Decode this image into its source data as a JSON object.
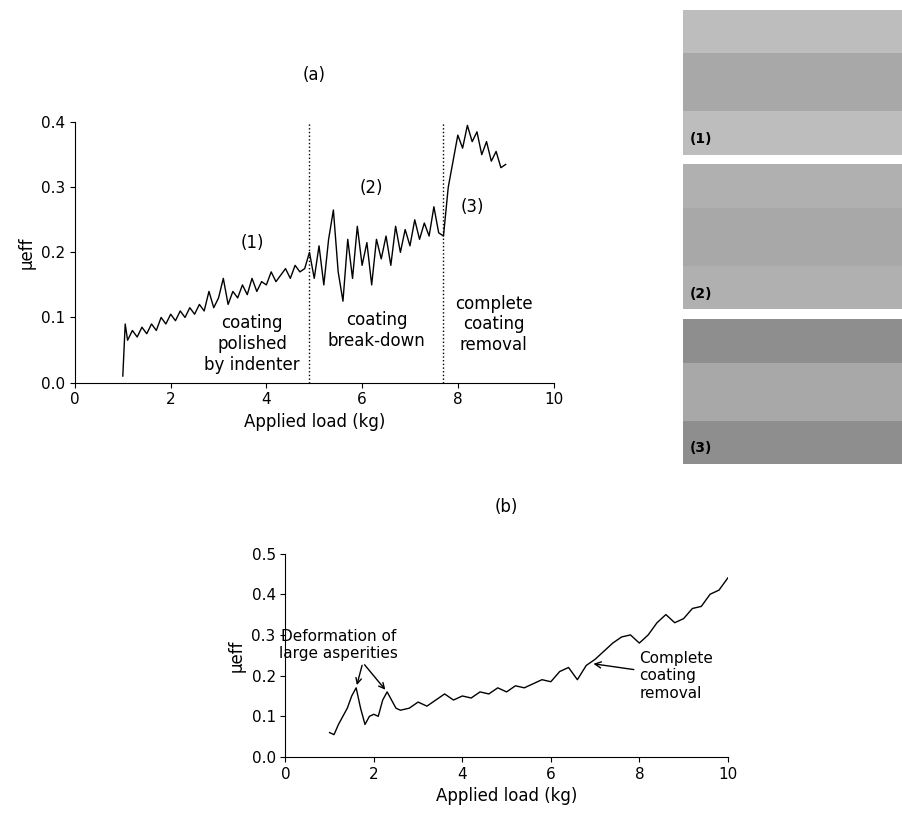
{
  "chart_data": [
    {
      "type": "line",
      "title": "(a)",
      "x_label": "Applied load (kg)",
      "y_label": "μeff",
      "color": "#000000",
      "x": [
        1.0,
        1.05,
        1.1,
        1.2,
        1.3,
        1.4,
        1.5,
        1.6,
        1.7,
        1.8,
        1.9,
        2.0,
        2.1,
        2.2,
        2.3,
        2.4,
        2.5,
        2.6,
        2.7,
        2.8,
        2.9,
        3.0,
        3.1,
        3.2,
        3.3,
        3.4,
        3.5,
        3.6,
        3.7,
        3.8,
        3.9,
        4.0,
        4.1,
        4.2,
        4.3,
        4.4,
        4.5,
        4.6,
        4.7,
        4.8,
        4.9,
        5.0,
        5.1,
        5.2,
        5.3,
        5.4,
        5.5,
        5.6,
        5.7,
        5.8,
        5.9,
        6.0,
        6.1,
        6.2,
        6.3,
        6.4,
        6.5,
        6.6,
        6.7,
        6.8,
        6.9,
        7.0,
        7.1,
        7.2,
        7.3,
        7.4,
        7.5,
        7.6,
        7.7,
        7.8,
        7.9,
        8.0,
        8.1,
        8.2,
        8.3,
        8.4,
        8.5,
        8.6,
        8.7,
        8.8,
        8.9,
        9.0
      ],
      "values": [
        0.01,
        0.09,
        0.065,
        0.08,
        0.07,
        0.085,
        0.075,
        0.09,
        0.08,
        0.1,
        0.09,
        0.105,
        0.095,
        0.11,
        0.1,
        0.115,
        0.105,
        0.12,
        0.11,
        0.14,
        0.115,
        0.13,
        0.16,
        0.12,
        0.14,
        0.13,
        0.15,
        0.135,
        0.16,
        0.14,
        0.155,
        0.15,
        0.17,
        0.155,
        0.165,
        0.175,
        0.16,
        0.18,
        0.17,
        0.175,
        0.2,
        0.16,
        0.21,
        0.15,
        0.22,
        0.265,
        0.17,
        0.125,
        0.22,
        0.16,
        0.24,
        0.18,
        0.215,
        0.15,
        0.22,
        0.19,
        0.225,
        0.18,
        0.24,
        0.2,
        0.235,
        0.21,
        0.25,
        0.22,
        0.245,
        0.225,
        0.27,
        0.23,
        0.225,
        0.3,
        0.34,
        0.38,
        0.36,
        0.395,
        0.37,
        0.385,
        0.35,
        0.37,
        0.34,
        0.355,
        0.33,
        0.335
      ],
      "xlim": [
        0,
        10
      ],
      "xticks": [
        0,
        2,
        4,
        6,
        8,
        10
      ],
      "ylim": [
        0.0,
        0.4
      ],
      "yticks": [
        0.0,
        0.1,
        0.2,
        0.3,
        0.4
      ],
      "dividers": [
        4.9,
        7.7
      ],
      "annotations": [
        {
          "text": "(1)"
        },
        {
          "text": "(2)"
        },
        {
          "text": "(3)"
        },
        {
          "text": "coating\npolished\nby indenter"
        },
        {
          "text": "coating\nbreak-down"
        },
        {
          "text": "complete\ncoating\nremoval"
        }
      ]
    },
    {
      "type": "line",
      "title": "(b)",
      "x_label": "Applied load (kg)",
      "y_label": "μeff",
      "color": "#000000",
      "x": [
        1.0,
        1.1,
        1.2,
        1.3,
        1.4,
        1.5,
        1.6,
        1.7,
        1.8,
        1.9,
        2.0,
        2.1,
        2.2,
        2.3,
        2.4,
        2.5,
        2.6,
        2.8,
        3.0,
        3.2,
        3.4,
        3.6,
        3.8,
        4.0,
        4.2,
        4.4,
        4.6,
        4.8,
        5.0,
        5.2,
        5.4,
        5.6,
        5.8,
        6.0,
        6.2,
        6.4,
        6.6,
        6.8,
        7.0,
        7.2,
        7.4,
        7.6,
        7.8,
        8.0,
        8.2,
        8.4,
        8.6,
        8.8,
        9.0,
        9.2,
        9.4,
        9.6,
        9.8,
        10.0
      ],
      "values": [
        0.06,
        0.055,
        0.08,
        0.1,
        0.12,
        0.15,
        0.17,
        0.12,
        0.08,
        0.1,
        0.105,
        0.1,
        0.14,
        0.16,
        0.14,
        0.12,
        0.115,
        0.12,
        0.135,
        0.125,
        0.14,
        0.155,
        0.14,
        0.15,
        0.145,
        0.16,
        0.155,
        0.17,
        0.16,
        0.175,
        0.17,
        0.18,
        0.19,
        0.185,
        0.21,
        0.22,
        0.19,
        0.225,
        0.24,
        0.26,
        0.28,
        0.295,
        0.3,
        0.28,
        0.3,
        0.33,
        0.35,
        0.33,
        0.34,
        0.365,
        0.37,
        0.4,
        0.41,
        0.44
      ],
      "xlim": [
        0,
        10
      ],
      "xticks": [
        0,
        2,
        4,
        6,
        8,
        10
      ],
      "ylim": [
        0.0,
        0.5
      ],
      "yticks": [
        0.0,
        0.1,
        0.2,
        0.3,
        0.4,
        0.5
      ],
      "annotations": [
        {
          "text": "Deformation of\nlarge asperities",
          "points": [
            [
              1.6,
              0.17
            ],
            [
              2.3,
              0.16
            ]
          ]
        },
        {
          "text": "Complete\ncoating\nremoval",
          "points": [
            [
              6.9,
              0.23
            ]
          ]
        }
      ]
    }
  ],
  "micrographs": {
    "labels": [
      "(1)",
      "(2)",
      "(3)"
    ]
  }
}
